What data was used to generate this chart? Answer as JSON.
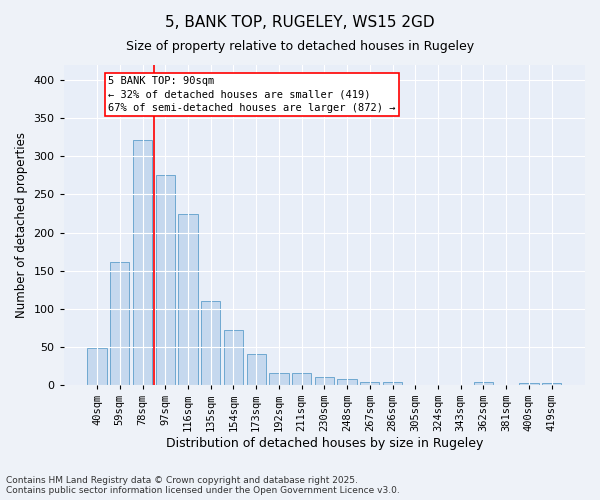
{
  "title1": "5, BANK TOP, RUGELEY, WS15 2GD",
  "title2": "Size of property relative to detached houses in Rugeley",
  "xlabel": "Distribution of detached houses by size in Rugeley",
  "ylabel": "Number of detached properties",
  "bar_labels": [
    "40sqm",
    "59sqm",
    "78sqm",
    "97sqm",
    "116sqm",
    "135sqm",
    "154sqm",
    "173sqm",
    "192sqm",
    "211sqm",
    "230sqm",
    "248sqm",
    "267sqm",
    "286sqm",
    "305sqm",
    "324sqm",
    "343sqm",
    "362sqm",
    "381sqm",
    "400sqm",
    "419sqm"
  ],
  "bar_values": [
    48,
    162,
    322,
    275,
    225,
    110,
    72,
    40,
    16,
    15,
    10,
    8,
    4,
    4,
    0,
    0,
    0,
    4,
    0,
    3,
    2
  ],
  "bar_color": "#c5d8ee",
  "bar_edge_color": "#6ea8d0",
  "annotation_box_label": "5 BANK TOP: 90sqm",
  "annotation_line1": "← 32% of detached houses are smaller (419)",
  "annotation_line2": "67% of semi-detached houses are larger (872) →",
  "red_line_x": 2.5,
  "ylim": [
    0,
    420
  ],
  "yticks": [
    0,
    50,
    100,
    150,
    200,
    250,
    300,
    350,
    400
  ],
  "footer1": "Contains HM Land Registry data © Crown copyright and database right 2025.",
  "footer2": "Contains public sector information licensed under the Open Government Licence v3.0.",
  "bg_color": "#eef2f8",
  "plot_bg_color": "#e8eef8"
}
